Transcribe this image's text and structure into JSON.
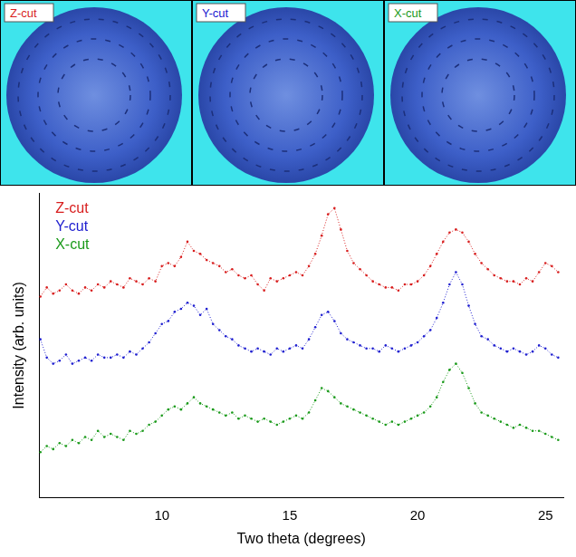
{
  "panels": [
    {
      "label": "Z-cut",
      "color": "#d81e1e"
    },
    {
      "label": "Y-cut",
      "color": "#2020d0"
    },
    {
      "label": "X-cut",
      "color": "#1a9a1a"
    }
  ],
  "chart_data": {
    "type": "line",
    "x_label": "Two theta (degrees)",
    "y_label": "Intensity (arb. units)",
    "xlim": [
      5.2,
      25.7
    ],
    "xticks": [
      10,
      15,
      20,
      25
    ],
    "ylim": [
      0,
      100
    ],
    "grid": false,
    "legend": "top-left",
    "tick_labels": "x",
    "x": [
      5.25,
      5.5,
      5.75,
      6,
      6.25,
      6.5,
      6.75,
      7,
      7.25,
      7.5,
      7.75,
      8,
      8.25,
      8.5,
      8.75,
      9,
      9.25,
      9.5,
      9.75,
      10,
      10.25,
      10.5,
      10.75,
      11,
      11.25,
      11.5,
      11.75,
      12,
      12.25,
      12.5,
      12.75,
      13,
      13.25,
      13.5,
      13.75,
      14,
      14.25,
      14.5,
      14.75,
      15,
      15.25,
      15.5,
      15.75,
      16,
      16.25,
      16.5,
      16.75,
      17,
      17.25,
      17.5,
      17.75,
      18,
      18.25,
      18.5,
      18.75,
      19,
      19.25,
      19.5,
      19.75,
      20,
      20.25,
      20.5,
      20.75,
      21,
      21.25,
      21.5,
      21.75,
      22,
      22.25,
      22.5,
      22.75,
      23,
      23.25,
      23.5,
      23.75,
      24,
      24.25,
      24.5,
      24.75,
      25,
      25.25,
      25.5
    ],
    "series": [
      {
        "name": "Z-cut",
        "color": "#d81e1e",
        "marker": "circle",
        "line_style": "dotted",
        "values": [
          66,
          69,
          67,
          68,
          70,
          68,
          67,
          69,
          68,
          70,
          69,
          71,
          70,
          69,
          72,
          71,
          70,
          72,
          71,
          76,
          77,
          76,
          79,
          84,
          81,
          80,
          78,
          77,
          76,
          74,
          75,
          73,
          72,
          73,
          70,
          68,
          72,
          71,
          72,
          73,
          74,
          73,
          76,
          80,
          86,
          93,
          95,
          88,
          81,
          77,
          75,
          73,
          71,
          70,
          69,
          69,
          68,
          70,
          70,
          71,
          73,
          76,
          80,
          84,
          87,
          88,
          87,
          84,
          80,
          77,
          75,
          73,
          72,
          71,
          71,
          70,
          72,
          71,
          74,
          77,
          76,
          74
        ]
      },
      {
        "name": "Y-cut",
        "color": "#2020d0",
        "marker": "circle",
        "line_style": "dotted",
        "values": [
          52,
          46,
          44,
          45,
          47,
          44,
          45,
          46,
          45,
          47,
          46,
          46,
          47,
          46,
          48,
          47,
          49,
          51,
          54,
          57,
          58,
          61,
          62,
          64,
          63,
          60,
          62,
          57,
          55,
          53,
          52,
          50,
          49,
          48,
          49,
          48,
          47,
          49,
          48,
          49,
          50,
          49,
          52,
          56,
          60,
          61,
          58,
          54,
          52,
          51,
          50,
          49,
          49,
          48,
          50,
          49,
          48,
          49,
          50,
          51,
          53,
          55,
          59,
          64,
          70,
          74,
          70,
          63,
          57,
          53,
          52,
          50,
          49,
          48,
          49,
          48,
          47,
          48,
          50,
          49,
          47,
          46
        ]
      },
      {
        "name": "X-cut",
        "color": "#1a9a1a",
        "marker": "circle",
        "line_style": "dotted",
        "values": [
          15,
          17,
          16,
          18,
          17,
          19,
          18,
          20,
          19,
          22,
          20,
          21,
          20,
          19,
          22,
          21,
          22,
          24,
          25,
          27,
          29,
          30,
          29,
          31,
          33,
          31,
          30,
          29,
          28,
          27,
          28,
          26,
          27,
          26,
          25,
          26,
          25,
          24,
          25,
          26,
          27,
          26,
          28,
          32,
          36,
          35,
          33,
          31,
          30,
          29,
          28,
          27,
          26,
          25,
          24,
          25,
          24,
          25,
          26,
          27,
          28,
          30,
          33,
          38,
          42,
          44,
          41,
          36,
          31,
          28,
          27,
          26,
          25,
          24,
          23,
          24,
          23,
          22,
          22,
          21,
          20,
          19
        ]
      }
    ]
  }
}
